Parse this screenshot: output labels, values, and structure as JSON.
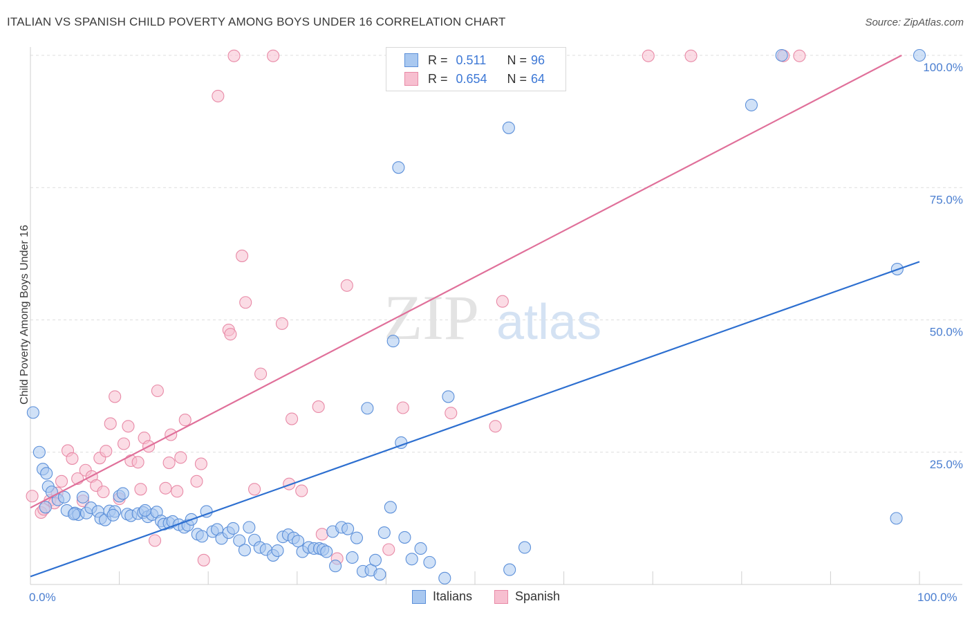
{
  "title": "ITALIAN VS SPANISH CHILD POVERTY AMONG BOYS UNDER 16 CORRELATION CHART",
  "source": "Source: ZipAtlas.com",
  "watermark": {
    "zip": "ZIP",
    "atlas": "atlas"
  },
  "colors": {
    "italians_fill": "#a9c8f0",
    "italians_stroke": "#5b8fd9",
    "italians_line": "#2d6fd0",
    "spanish_fill": "#f7bfd0",
    "spanish_stroke": "#e889a6",
    "spanish_line": "#e0709a",
    "axis_label": "#4a7ed0",
    "grid": "#dddddd"
  },
  "legend": {
    "italians": {
      "r_label": "R =",
      "r_value": "0.511",
      "n_label": "N =",
      "n_value": "96"
    },
    "spanish": {
      "r_label": "R =",
      "r_value": "0.654",
      "n_label": "N =",
      "n_value": "64"
    }
  },
  "chart_data": {
    "type": "scatter",
    "title": "ITALIAN VS SPANISH CHILD POVERTY AMONG BOYS UNDER 16 CORRELATION CHART",
    "xlabel": "",
    "ylabel": "Child Poverty Among Boys Under 16",
    "xlim": [
      0,
      100
    ],
    "ylim": [
      0,
      100
    ],
    "x_tick_labels": [
      "0.0%",
      "100.0%"
    ],
    "y_tick_values": [
      25,
      50,
      75,
      100
    ],
    "y_tick_labels": [
      "25.0%",
      "50.0%",
      "75.0%",
      "100.0%"
    ],
    "grid": true,
    "series": [
      {
        "name": "Italians",
        "r": 0.511,
        "n": 96,
        "trend": [
          [
            0,
            1.5
          ],
          [
            100,
            61
          ]
        ],
        "points": [
          [
            0.3,
            32.5
          ],
          [
            1,
            25
          ],
          [
            1.4,
            21.8
          ],
          [
            1.8,
            21
          ],
          [
            2,
            18.5
          ],
          [
            2.4,
            17.5
          ],
          [
            3.1,
            16
          ],
          [
            3.8,
            16.5
          ],
          [
            4.1,
            14
          ],
          [
            5,
            13.5
          ],
          [
            5.4,
            13.2
          ],
          [
            5.9,
            16.5
          ],
          [
            6.3,
            13.5
          ],
          [
            6.8,
            14.5
          ],
          [
            7.6,
            13.8
          ],
          [
            7.9,
            12.5
          ],
          [
            8.4,
            12.2
          ],
          [
            8.9,
            13.9
          ],
          [
            9.5,
            13.8
          ],
          [
            10,
            16.7
          ],
          [
            10.4,
            17.2
          ],
          [
            10.9,
            13.3
          ],
          [
            11.3,
            13
          ],
          [
            12.1,
            13.4
          ],
          [
            12.7,
            13.6
          ],
          [
            13.2,
            12.8
          ],
          [
            13.7,
            13.2
          ],
          [
            14.2,
            13.7
          ],
          [
            14.7,
            12
          ],
          [
            15,
            11.4
          ],
          [
            15.6,
            11.6
          ],
          [
            16,
            11.9
          ],
          [
            16.7,
            11.3
          ],
          [
            17.3,
            10.8
          ],
          [
            17.7,
            11.2
          ],
          [
            18.1,
            12.3
          ],
          [
            18.8,
            9.5
          ],
          [
            19.3,
            9.1
          ],
          [
            19.8,
            13.8
          ],
          [
            20.5,
            10
          ],
          [
            21,
            10.4
          ],
          [
            21.5,
            8.7
          ],
          [
            22.3,
            9.8
          ],
          [
            22.8,
            10.6
          ],
          [
            23.5,
            8.3
          ],
          [
            24.1,
            6.5
          ],
          [
            24.6,
            10.8
          ],
          [
            25.2,
            8.4
          ],
          [
            25.8,
            7
          ],
          [
            26.5,
            6.6
          ],
          [
            27.3,
            5.5
          ],
          [
            27.8,
            6.4
          ],
          [
            28.4,
            9
          ],
          [
            29,
            9.4
          ],
          [
            29.6,
            8.8
          ],
          [
            30.1,
            8.2
          ],
          [
            30.6,
            6.2
          ],
          [
            31.3,
            7
          ],
          [
            31.9,
            6.8
          ],
          [
            32.5,
            6.8
          ],
          [
            32.9,
            6.6
          ],
          [
            33.3,
            6.2
          ],
          [
            34,
            10
          ],
          [
            34.3,
            3.5
          ],
          [
            35,
            10.8
          ],
          [
            35.7,
            10.5
          ],
          [
            36.2,
            5.1
          ],
          [
            36.7,
            8.8
          ],
          [
            37.4,
            2.5
          ],
          [
            37.9,
            33.3
          ],
          [
            38.3,
            2.7
          ],
          [
            38.8,
            4.6
          ],
          [
            39.3,
            1.9
          ],
          [
            39.8,
            9.8
          ],
          [
            40.5,
            14.6
          ],
          [
            40.8,
            46
          ],
          [
            41.4,
            78.8
          ],
          [
            41.7,
            26.8
          ],
          [
            42.1,
            8.9
          ],
          [
            42.9,
            4.8
          ],
          [
            43.9,
            6.8
          ],
          [
            44.9,
            4.2
          ],
          [
            46.6,
            1.2
          ],
          [
            47,
            35.5
          ],
          [
            53.8,
            86.3
          ],
          [
            53.9,
            2.8
          ],
          [
            55.6,
            7
          ],
          [
            81.1,
            90.6
          ],
          [
            84.5,
            100
          ],
          [
            97.4,
            12.5
          ],
          [
            97.5,
            59.6
          ],
          [
            100,
            100
          ],
          [
            1.7,
            14.6
          ],
          [
            4.9,
            13.3
          ],
          [
            9.3,
            13.1
          ],
          [
            12.9,
            14
          ]
        ]
      },
      {
        "name": "Spanish",
        "r": 0.654,
        "n": 64,
        "trend": [
          [
            0,
            14.5
          ],
          [
            98,
            100
          ]
        ],
        "points": [
          [
            0.2,
            16.7
          ],
          [
            1.2,
            13.6
          ],
          [
            2.2,
            15.9
          ],
          [
            3.5,
            19.5
          ],
          [
            4.2,
            25.3
          ],
          [
            4.7,
            23.8
          ],
          [
            5.3,
            20
          ],
          [
            6.2,
            21.6
          ],
          [
            6.9,
            20.4
          ],
          [
            7.4,
            18.7
          ],
          [
            7.8,
            23.9
          ],
          [
            8.5,
            25.2
          ],
          [
            9,
            30.4
          ],
          [
            9.5,
            35.5
          ],
          [
            10,
            16.2
          ],
          [
            10.5,
            26.6
          ],
          [
            11,
            29.9
          ],
          [
            11.3,
            23.4
          ],
          [
            12.1,
            23.1
          ],
          [
            12.4,
            18
          ],
          [
            12.8,
            27.7
          ],
          [
            13.3,
            26.1
          ],
          [
            14,
            8.3
          ],
          [
            14.3,
            36.6
          ],
          [
            15.2,
            18.2
          ],
          [
            15.6,
            23
          ],
          [
            15.8,
            28.3
          ],
          [
            16.5,
            17.6
          ],
          [
            16.9,
            24
          ],
          [
            17.4,
            31.1
          ],
          [
            18.7,
            19.5
          ],
          [
            19.2,
            22.8
          ],
          [
            19.5,
            4.6
          ],
          [
            21.1,
            92.3
          ],
          [
            22.3,
            48.1
          ],
          [
            22.5,
            47.3
          ],
          [
            22.9,
            99.9
          ],
          [
            23.8,
            62.1
          ],
          [
            24.2,
            53.3
          ],
          [
            25.2,
            18
          ],
          [
            25.9,
            39.8
          ],
          [
            27.3,
            99.9
          ],
          [
            28.3,
            49.3
          ],
          [
            29.1,
            19
          ],
          [
            29.4,
            31.3
          ],
          [
            30.5,
            17.7
          ],
          [
            32.4,
            33.6
          ],
          [
            34.5,
            4.9
          ],
          [
            35.6,
            56.5
          ],
          [
            40.3,
            6.6
          ],
          [
            41.9,
            33.4
          ],
          [
            47.3,
            32.4
          ],
          [
            52.3,
            29.9
          ],
          [
            53.1,
            53.5
          ],
          [
            69.5,
            99.9
          ],
          [
            74.3,
            99.9
          ],
          [
            84.7,
            99.9
          ],
          [
            86.5,
            99.9
          ],
          [
            32.8,
            9.5
          ],
          [
            5.9,
            15.8
          ],
          [
            1.5,
            14.2
          ],
          [
            3,
            17.3
          ],
          [
            8.2,
            17.5
          ],
          [
            2.7,
            15.4
          ]
        ]
      }
    ]
  },
  "x_axis": {
    "left_label": "0.0%",
    "right_label": "100.0%"
  },
  "bottom_legend": {
    "italians": "Italians",
    "spanish": "Spanish"
  }
}
